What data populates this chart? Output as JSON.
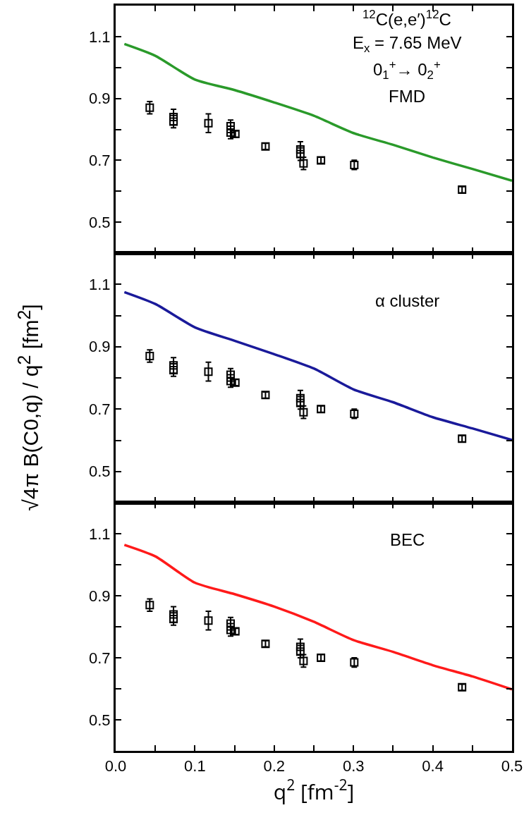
{
  "chart_data": [
    {
      "type": "scatter",
      "tick_labels": "y",
      "xlim": [
        0,
        0.5
      ],
      "xticks": [
        {
          "value": 0.05,
          "label": null
        },
        0.1,
        {
          "value": 0.15,
          "label": null
        },
        0.2,
        {
          "value": 0.25,
          "label": null
        },
        0.3,
        {
          "value": 0.35,
          "label": null
        },
        0.4,
        {
          "value": 0.45,
          "label": null
        }
      ],
      "ylim": [
        0.4,
        1.2
      ],
      "yticks": [
        0.5,
        {
          "value": 0.6,
          "label": null
        },
        0.7,
        {
          "value": 0.8,
          "label": null
        },
        0.9,
        {
          "value": 1.0,
          "label": null
        },
        1.1
      ],
      "annotations": [
        "$^{12}$C(e,e′)$^{12}$C",
        "E$_{x}$ = 7.65 MeV",
        "0$_{1}$$^{+}$→ 0$_{2}$$^{+}$",
        "FMD"
      ],
      "series": [
        {
          "type": "scatter",
          "marker": "square",
          "color": "#000000",
          "x": [
            0.043,
            0.073,
            0.073,
            0.117,
            0.145,
            0.145,
            0.151,
            0.189,
            0.233,
            0.233,
            0.237,
            0.259,
            0.301,
            0.437
          ],
          "values": [
            0.87,
            0.84,
            0.825,
            0.82,
            0.81,
            0.79,
            0.785,
            0.745,
            0.735,
            0.72,
            0.69,
            0.7,
            0.685,
            0.605
          ],
          "errors": [
            0.02,
            0.025,
            0.02,
            0.03,
            0.02,
            0.02,
            0.01,
            0.01,
            0.025,
            0.02,
            0.02,
            0.01,
            0.015,
            0.01
          ]
        },
        {
          "type": "line",
          "color": "#2a9a2a",
          "x": [
            0.011,
            0.05,
            0.1,
            0.15,
            0.2,
            0.25,
            0.3,
            0.35,
            0.4,
            0.45,
            0.5
          ],
          "values": [
            1.076,
            1.038,
            0.961,
            0.927,
            0.887,
            0.844,
            0.788,
            0.75,
            0.709,
            0.672,
            0.634
          ]
        }
      ]
    },
    {
      "type": "scatter",
      "tick_labels": "y",
      "ylabel": "√4π B(C0,q) / q$^{2}$  [fm$^{2}$]",
      "xlim": [
        0,
        0.5
      ],
      "xticks": [
        {
          "value": 0.05,
          "label": null
        },
        0.1,
        {
          "value": 0.15,
          "label": null
        },
        0.2,
        {
          "value": 0.25,
          "label": null
        },
        0.3,
        {
          "value": 0.35,
          "label": null
        },
        0.4,
        {
          "value": 0.45,
          "label": null
        }
      ],
      "ylim": [
        0.4,
        1.2
      ],
      "yticks": [
        0.5,
        {
          "value": 0.6,
          "label": null
        },
        0.7,
        {
          "value": 0.8,
          "label": null
        },
        0.9,
        {
          "value": 1.0,
          "label": null
        },
        1.1
      ],
      "annotations": [
        "α cluster"
      ],
      "series": [
        {
          "type": "scatter",
          "marker": "square",
          "color": "#000000",
          "x": [
            0.043,
            0.073,
            0.073,
            0.117,
            0.145,
            0.145,
            0.151,
            0.189,
            0.233,
            0.233,
            0.237,
            0.259,
            0.301,
            0.437
          ],
          "values": [
            0.87,
            0.84,
            0.825,
            0.82,
            0.81,
            0.79,
            0.785,
            0.745,
            0.735,
            0.72,
            0.69,
            0.7,
            0.685,
            0.605
          ],
          "errors": [
            0.02,
            0.025,
            0.02,
            0.03,
            0.02,
            0.02,
            0.01,
            0.01,
            0.025,
            0.02,
            0.02,
            0.01,
            0.015,
            0.01
          ]
        },
        {
          "type": "line",
          "color": "#1a1a9a",
          "x": [
            0.011,
            0.05,
            0.1,
            0.15,
            0.2,
            0.25,
            0.3,
            0.35,
            0.4,
            0.45,
            0.5
          ],
          "values": [
            1.075,
            1.037,
            0.962,
            0.919,
            0.876,
            0.83,
            0.763,
            0.722,
            0.674,
            0.638,
            0.601
          ]
        }
      ]
    },
    {
      "type": "scatter",
      "xlabel": "q$^{2}$ [fm$^{-2}$]",
      "xlim": [
        0,
        0.5
      ],
      "xticks": [
        {
          "value": 0,
          "label": "0.0"
        },
        {
          "value": 0.05,
          "label": null
        },
        0.1,
        {
          "value": 0.15,
          "label": null
        },
        0.2,
        {
          "value": 0.25,
          "label": null
        },
        0.3,
        {
          "value": 0.35,
          "label": null
        },
        0.4,
        {
          "value": 0.45,
          "label": null
        },
        0.5
      ],
      "ylim": [
        0.4,
        1.2
      ],
      "yticks": [
        0.5,
        {
          "value": 0.6,
          "label": null
        },
        0.7,
        {
          "value": 0.8,
          "label": null
        },
        0.9,
        {
          "value": 1.0,
          "label": null
        },
        1.1
      ],
      "annotations": [
        "BEC"
      ],
      "series": [
        {
          "type": "scatter",
          "marker": "square",
          "color": "#000000",
          "x": [
            0.043,
            0.073,
            0.073,
            0.117,
            0.145,
            0.145,
            0.151,
            0.189,
            0.233,
            0.233,
            0.237,
            0.259,
            0.301,
            0.437
          ],
          "values": [
            0.87,
            0.84,
            0.825,
            0.82,
            0.81,
            0.79,
            0.785,
            0.745,
            0.735,
            0.72,
            0.69,
            0.7,
            0.685,
            0.605
          ],
          "errors": [
            0.02,
            0.025,
            0.02,
            0.03,
            0.02,
            0.02,
            0.01,
            0.01,
            0.025,
            0.02,
            0.02,
            0.01,
            0.015,
            0.01
          ]
        },
        {
          "type": "line",
          "color": "#ff1a1a",
          "x": [
            0.011,
            0.05,
            0.1,
            0.15,
            0.2,
            0.25,
            0.3,
            0.35,
            0.4,
            0.45,
            0.5
          ],
          "values": [
            1.064,
            1.027,
            0.942,
            0.905,
            0.865,
            0.816,
            0.757,
            0.719,
            0.676,
            0.64,
            0.598
          ]
        }
      ]
    }
  ]
}
